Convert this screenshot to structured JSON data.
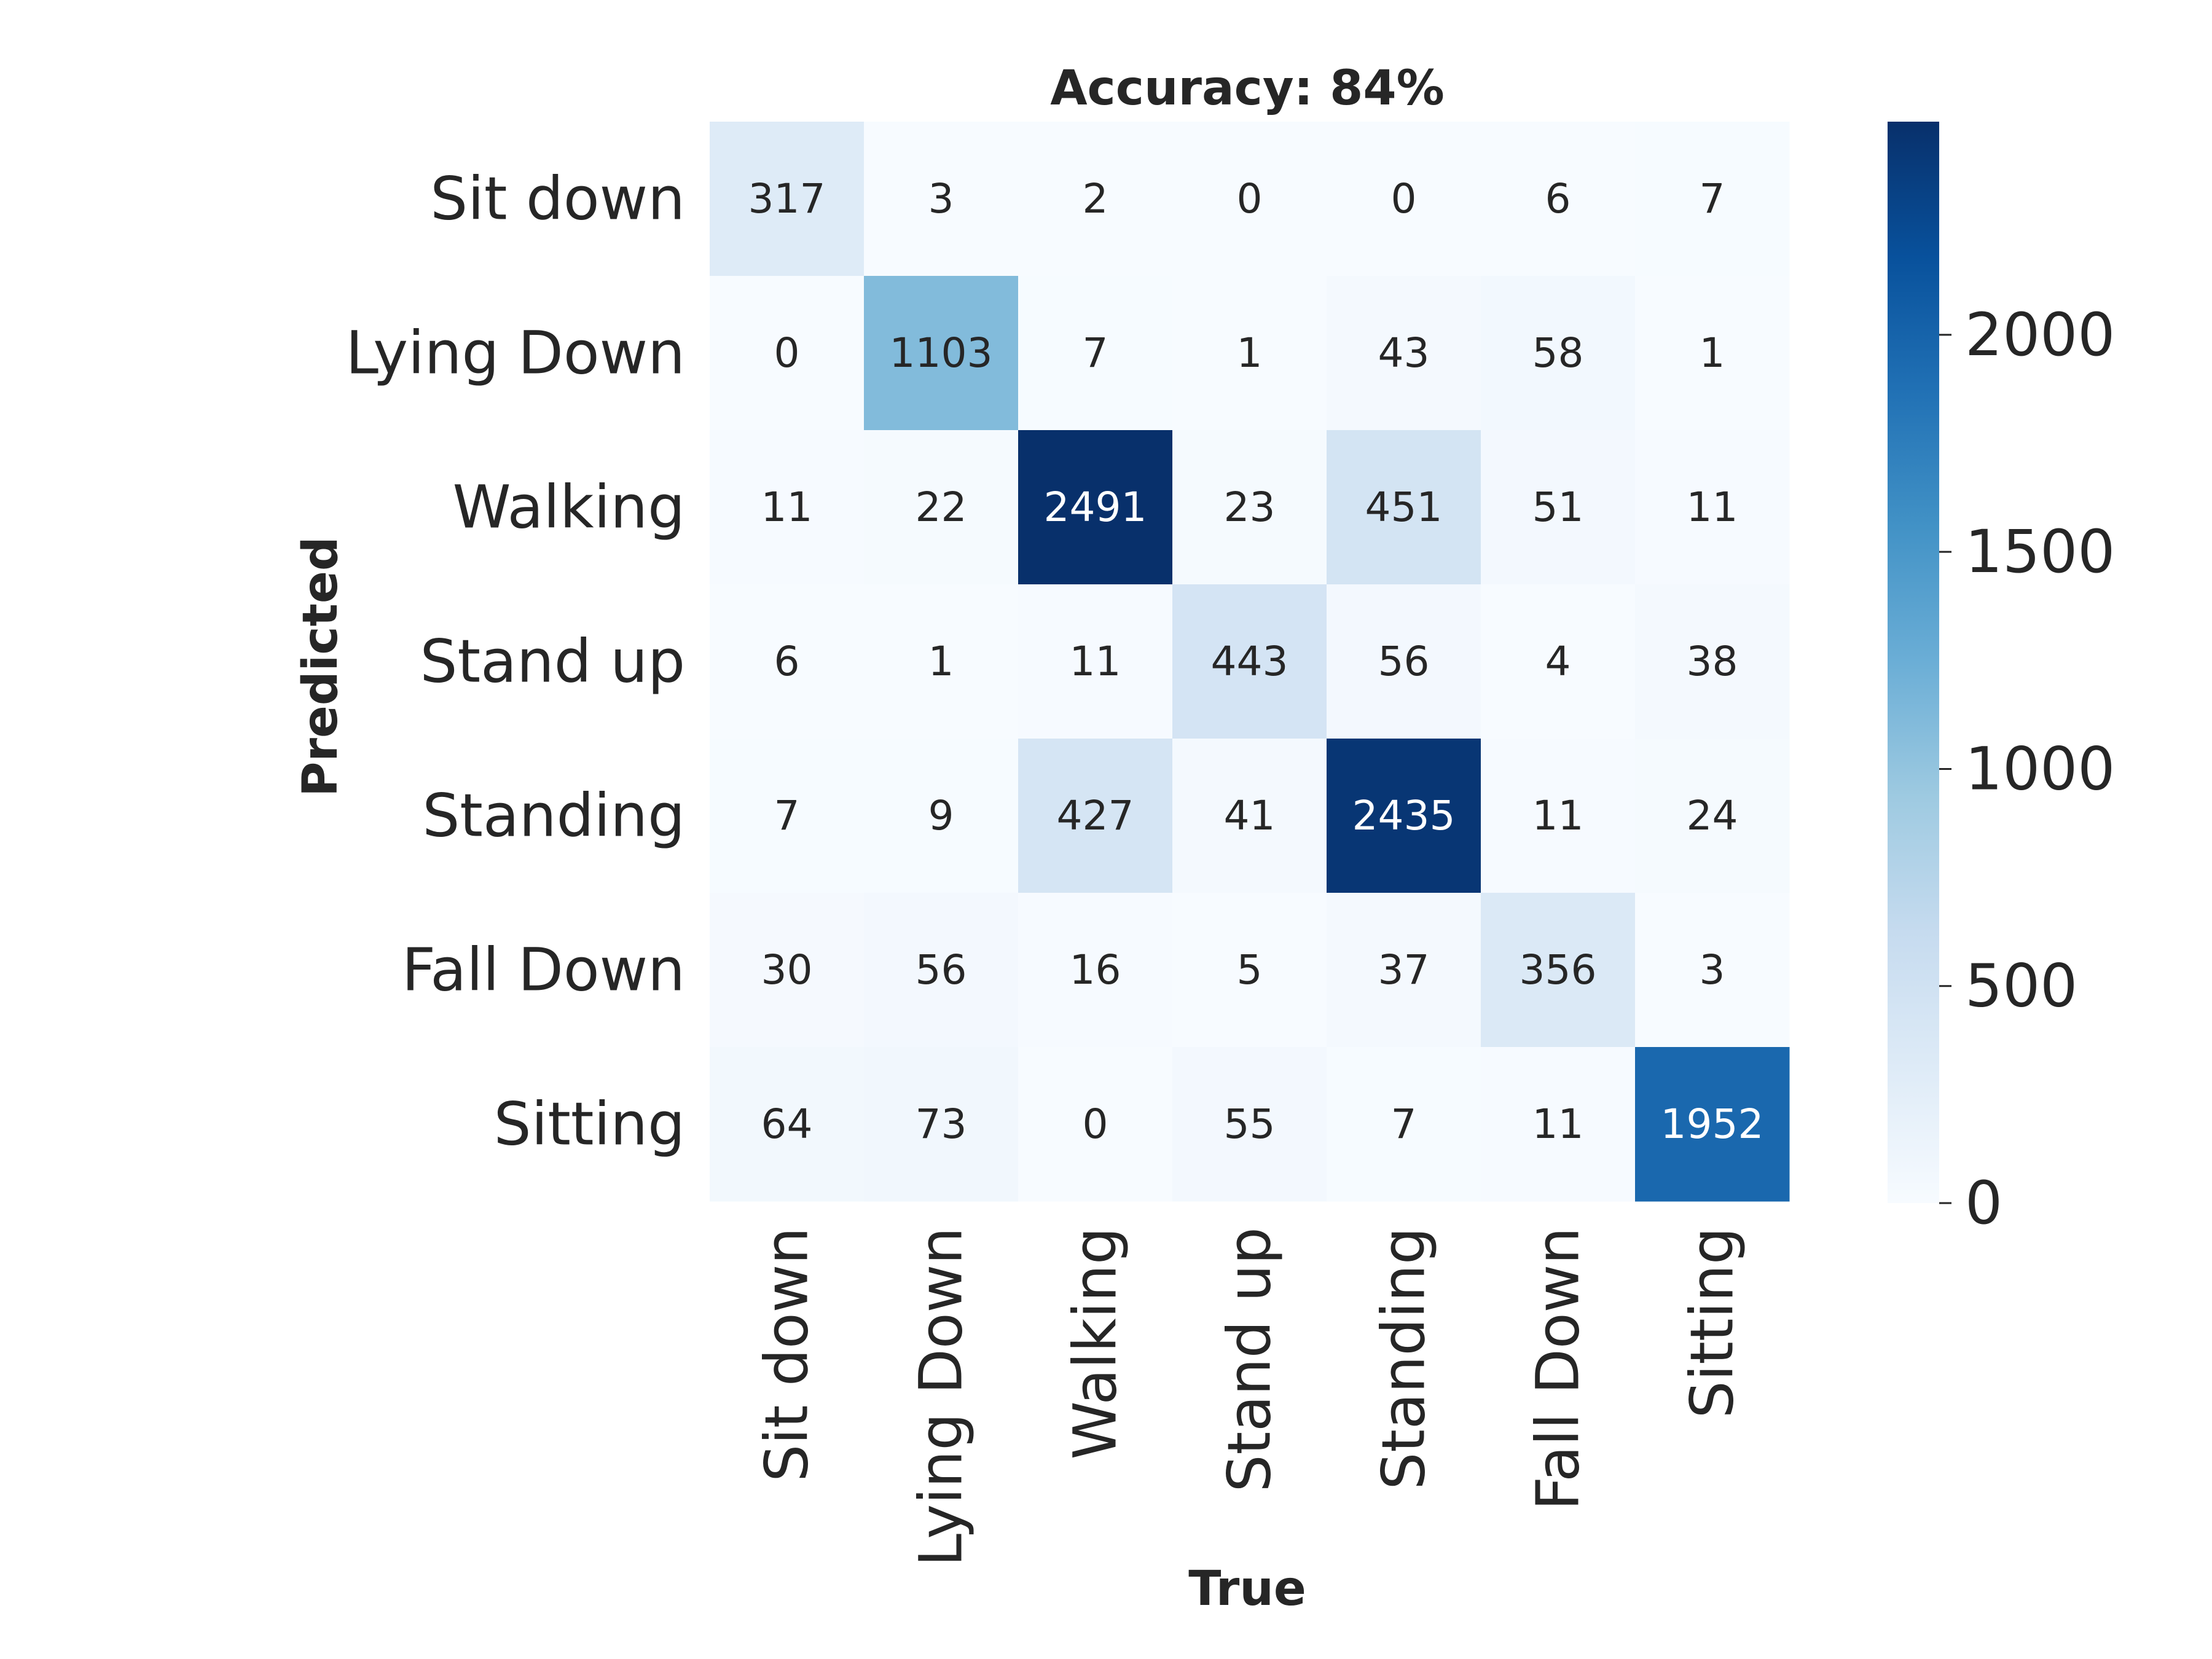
{
  "chart_data": {
    "type": "heatmap",
    "title": "Accuracy: 84%",
    "xlabel": "True",
    "ylabel": "Predicted",
    "x_categories": [
      "Sit down",
      "Lying Down",
      "Walking",
      "Stand up",
      "Standing",
      "Fall Down",
      "Sitting"
    ],
    "y_categories": [
      "Sit down",
      "Lying Down",
      "Walking",
      "Stand up",
      "Standing",
      "Fall Down",
      "Sitting"
    ],
    "values": [
      [
        317,
        3,
        2,
        0,
        0,
        6,
        7
      ],
      [
        0,
        1103,
        7,
        1,
        43,
        58,
        1
      ],
      [
        11,
        22,
        2491,
        23,
        451,
        51,
        11
      ],
      [
        6,
        1,
        11,
        443,
        56,
        4,
        38
      ],
      [
        7,
        9,
        427,
        41,
        2435,
        11,
        24
      ],
      [
        30,
        56,
        16,
        5,
        37,
        356,
        3
      ],
      [
        64,
        73,
        0,
        55,
        7,
        11,
        1952
      ]
    ],
    "colormap": "Blues",
    "colorbar": {
      "range": [
        0,
        2491
      ],
      "ticks": [
        0,
        500,
        1000,
        1500,
        2000
      ],
      "tick_labels": [
        "0",
        "500",
        "1000",
        "1500",
        "2000"
      ]
    },
    "annotated": true,
    "grid": false,
    "legend": "colorbar-right"
  }
}
